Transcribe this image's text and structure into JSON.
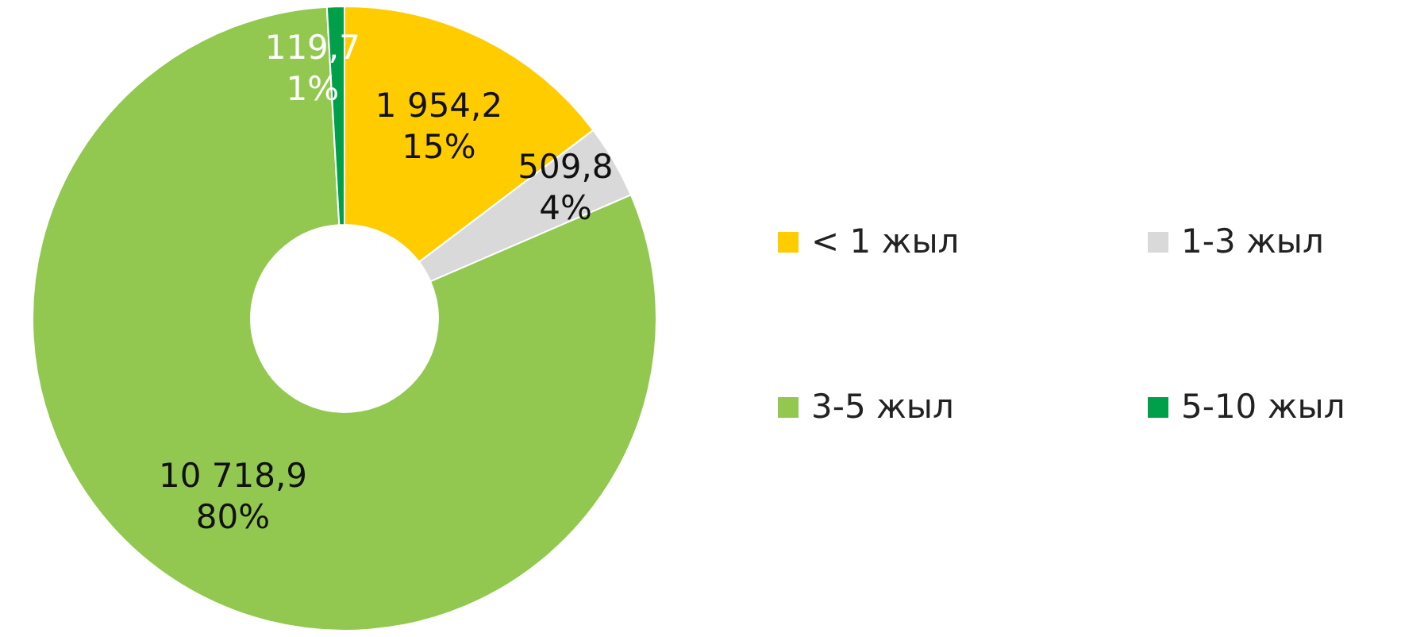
{
  "chart_data": {
    "type": "donut",
    "categories": [
      "< 1 жыл",
      "1-3 жыл",
      "3-5 жыл",
      "5-10 жыл"
    ],
    "values": [
      1954.2,
      509.8,
      10718.9,
      119.7
    ],
    "colors": [
      "#ffcc00",
      "#d9d9d9",
      "#92c84f",
      "#00a04a"
    ],
    "value_labels": [
      "1 954,2\n15%",
      "509,8\n4%",
      "10 718,9\n80%",
      "119,7\n1%"
    ],
    "legend": "right"
  }
}
